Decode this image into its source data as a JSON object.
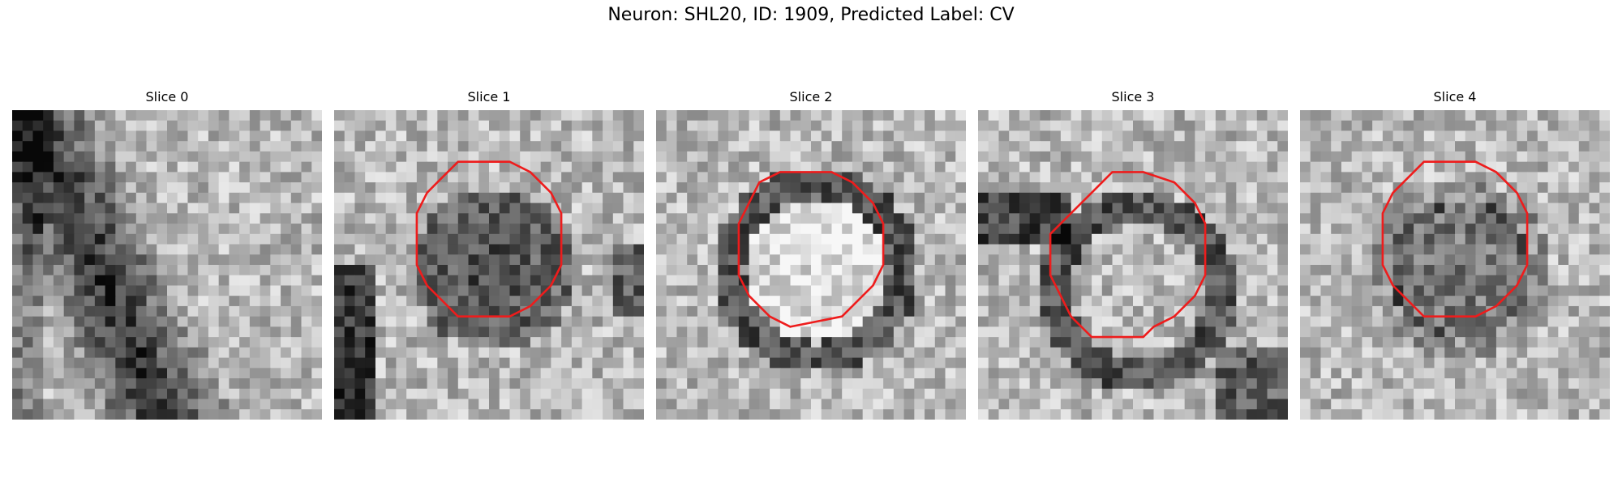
{
  "figure": {
    "title": "Neuron: SHL20, ID: 1909, Predicted Label: CV"
  },
  "panels": [
    {
      "title": "Slice 0",
      "has_contour": false
    },
    {
      "title": "Slice 1",
      "has_contour": true
    },
    {
      "title": "Slice 2",
      "has_contour": true
    },
    {
      "title": "Slice 3",
      "has_contour": true
    },
    {
      "title": "Slice 4",
      "has_contour": true
    }
  ],
  "colors": {
    "contour": "#ee1c1c",
    "background": "#ffffff"
  }
}
